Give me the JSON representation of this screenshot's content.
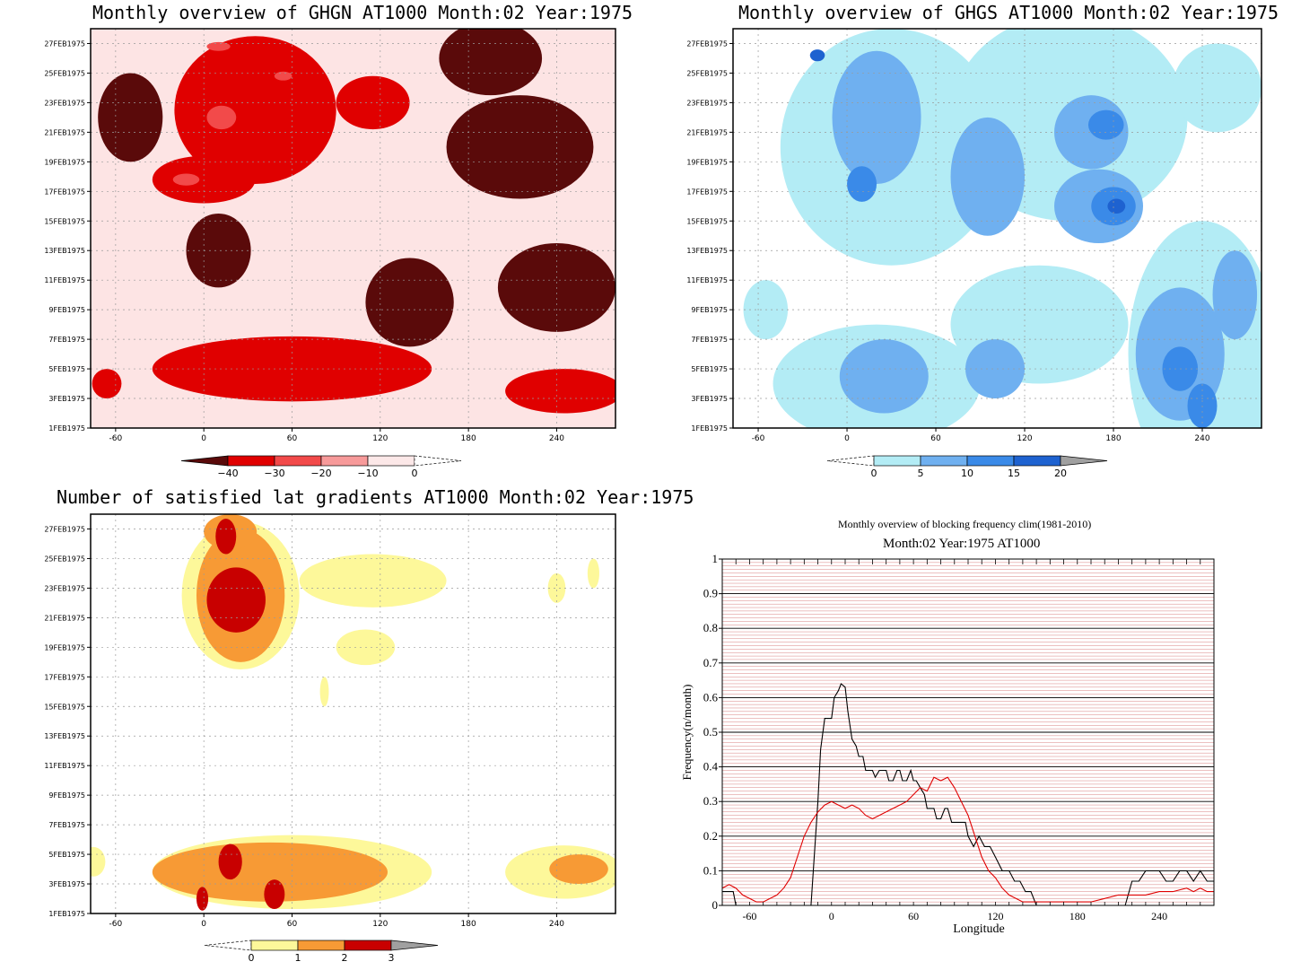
{
  "panels": {
    "ghgn": {
      "title": "Monthly overview of GHGN AT1000 Month:02 Year:1975"
    },
    "ghgs": {
      "title": "Monthly overview of GHGS AT1000 Month:02 Year:1975"
    },
    "lat": {
      "title": "Number of satisfied lat gradients AT1000 Month:02 Year:1975"
    },
    "blocking": {
      "title1": "Monthly overview of blocking frequency clim(1981-2010)",
      "title2": "Month:02 Year:1975  AT1000"
    }
  },
  "colorbars": {
    "ghgn": {
      "labels": [
        "-40",
        "-30",
        "-20",
        "-10",
        "0"
      ],
      "colors": [
        "#5a0a0a",
        "#e00000",
        "#f24a4a",
        "#f79a9a",
        "#fce8e8"
      ]
    },
    "ghgs": {
      "labels": [
        "0",
        "5",
        "10",
        "15",
        "20"
      ],
      "colors": [
        "#b3ecf5",
        "#6fb0f0",
        "#3a8ae8",
        "#1e62d0",
        "#a0a0a0"
      ]
    },
    "lat": {
      "labels": [
        "0",
        "1",
        "2",
        "3"
      ],
      "colors": [
        "#fdf89a",
        "#f79a35",
        "#c80000",
        "#a0a0a0"
      ]
    }
  },
  "chart_data": [
    {
      "type": "heatmap",
      "title": "Monthly overview of GHGN AT1000 Month:02 Year:1975",
      "xticks": [
        "-60",
        "0",
        "60",
        "120",
        "180",
        "240"
      ],
      "yticks": [
        "1FEB1975",
        "3FEB1975",
        "5FEB1975",
        "7FEB1975",
        "9FEB1975",
        "11FEB1975",
        "13FEB1975",
        "15FEB1975",
        "17FEB1975",
        "19FEB1975",
        "21FEB1975",
        "23FEB1975",
        "25FEB1975",
        "27FEB1975"
      ],
      "xlim": [
        -77,
        280
      ],
      "ylim": [
        1,
        28
      ],
      "levels": [
        -40,
        -30,
        -20,
        -10,
        0
      ],
      "colors": [
        "#5a0a0a",
        "#e00000",
        "#f24a4a",
        "#f79a9a",
        "#fde4e4"
      ],
      "background": "#fde4e4",
      "blobs": [
        {
          "x": [
            -77,
            280
          ],
          "y": [
            1,
            28
          ],
          "level": "none",
          "comment": "field"
        },
        {
          "cx": 140,
          "cy": 9.5,
          "rx": 30,
          "ry": 3,
          "level": 0
        },
        {
          "cx": 240,
          "cy": 10.5,
          "rx": 40,
          "ry": 3,
          "level": 0
        },
        {
          "cx": 10,
          "cy": 13,
          "rx": 22,
          "ry": 2.5,
          "level": 0
        },
        {
          "cx": 215,
          "cy": 20,
          "rx": 50,
          "ry": 3.5,
          "level": 0
        },
        {
          "cx": 195,
          "cy": 26,
          "rx": 35,
          "ry": 2.5,
          "level": 0
        },
        {
          "cx": -50,
          "cy": 22,
          "rx": 22,
          "ry": 3,
          "level": 0
        },
        {
          "cx": 35,
          "cy": 22.5,
          "rx": 55,
          "ry": 5,
          "level": 1
        },
        {
          "cx": 0,
          "cy": 17.8,
          "rx": 35,
          "ry": 1.6,
          "level": 1
        },
        {
          "cx": 115,
          "cy": 23,
          "rx": 25,
          "ry": 1.8,
          "level": 1
        },
        {
          "cx": 60,
          "cy": 5,
          "rx": 95,
          "ry": 2.2,
          "level": 1
        },
        {
          "cx": 245,
          "cy": 3.5,
          "rx": 40,
          "ry": 1.5,
          "level": 1
        },
        {
          "cx": -66,
          "cy": 4,
          "rx": 10,
          "ry": 1,
          "level": 1
        },
        {
          "cx": 12,
          "cy": 22,
          "rx": 10,
          "ry": 0.8,
          "level": 2
        },
        {
          "cx": -12,
          "cy": 17.8,
          "rx": 9,
          "ry": 0.4,
          "level": 2
        },
        {
          "cx": 10,
          "cy": 26.8,
          "rx": 8,
          "ry": 0.3,
          "level": 2
        },
        {
          "cx": 54,
          "cy": 24.8,
          "rx": 6,
          "ry": 0.3,
          "level": 2
        }
      ]
    },
    {
      "type": "heatmap",
      "title": "Monthly overview of GHGS AT1000 Month:02 Year:1975",
      "xticks": [
        "-60",
        "0",
        "60",
        "120",
        "180",
        "240"
      ],
      "yticks": [
        "1FEB1975",
        "3FEB1975",
        "5FEB1975",
        "7FEB1975",
        "9FEB1975",
        "11FEB1975",
        "13FEB1975",
        "15FEB1975",
        "17FEB1975",
        "19FEB1975",
        "21FEB1975",
        "23FEB1975",
        "25FEB1975",
        "27FEB1975"
      ],
      "xlim": [
        -77,
        280
      ],
      "ylim": [
        1,
        28
      ],
      "levels": [
        0,
        5,
        10,
        15,
        20
      ],
      "colors": [
        "#b3ecf5",
        "#6fb0f0",
        "#3a8ae8",
        "#1e62d0",
        "#a0a0a0"
      ],
      "background": "#ffffff",
      "blobs": [
        {
          "cx": 30,
          "cy": 20,
          "rx": 75,
          "ry": 8,
          "level": 0
        },
        {
          "cx": 150,
          "cy": 22,
          "rx": 80,
          "ry": 7,
          "level": 0
        },
        {
          "cx": 240,
          "cy": 6,
          "rx": 50,
          "ry": 9,
          "level": 0
        },
        {
          "cx": 20,
          "cy": 4,
          "rx": 70,
          "ry": 4,
          "level": 0
        },
        {
          "cx": 130,
          "cy": 8,
          "rx": 60,
          "ry": 4,
          "level": 0
        },
        {
          "cx": 250,
          "cy": 24,
          "rx": 30,
          "ry": 3,
          "level": 0
        },
        {
          "cx": -55,
          "cy": 9,
          "rx": 15,
          "ry": 2,
          "level": 0
        },
        {
          "cx": 20,
          "cy": 22,
          "rx": 30,
          "ry": 4.5,
          "level": 1
        },
        {
          "cx": 95,
          "cy": 18,
          "rx": 25,
          "ry": 4,
          "level": 1
        },
        {
          "cx": 165,
          "cy": 21,
          "rx": 25,
          "ry": 2.5,
          "level": 1
        },
        {
          "cx": 170,
          "cy": 16,
          "rx": 30,
          "ry": 2.5,
          "level": 1
        },
        {
          "cx": 25,
          "cy": 4.5,
          "rx": 30,
          "ry": 2.5,
          "level": 1
        },
        {
          "cx": 100,
          "cy": 5,
          "rx": 20,
          "ry": 2,
          "level": 1
        },
        {
          "cx": 225,
          "cy": 6,
          "rx": 30,
          "ry": 4.5,
          "level": 1
        },
        {
          "cx": 262,
          "cy": 10,
          "rx": 15,
          "ry": 3,
          "level": 1
        },
        {
          "cx": 10,
          "cy": 17.5,
          "rx": 10,
          "ry": 1.2,
          "level": 2
        },
        {
          "cx": 175,
          "cy": 21.5,
          "rx": 12,
          "ry": 1,
          "level": 2
        },
        {
          "cx": 180,
          "cy": 16,
          "rx": 15,
          "ry": 1.3,
          "level": 2
        },
        {
          "cx": 225,
          "cy": 5,
          "rx": 12,
          "ry": 1.5,
          "level": 2
        },
        {
          "cx": 240,
          "cy": 2.5,
          "rx": 10,
          "ry": 1.5,
          "level": 2
        },
        {
          "cx": -20,
          "cy": 26.2,
          "rx": 5,
          "ry": 0.4,
          "level": 3
        },
        {
          "cx": 182,
          "cy": 16,
          "rx": 6,
          "ry": 0.5,
          "level": 3
        }
      ]
    },
    {
      "type": "heatmap",
      "title": "Number of satisfied lat gradients AT1000 Month:02 Year:1975",
      "xticks": [
        "-60",
        "0",
        "60",
        "120",
        "180",
        "240"
      ],
      "yticks": [
        "1FEB1975",
        "3FEB1975",
        "5FEB1975",
        "7FEB1975",
        "9FEB1975",
        "11FEB1975",
        "13FEB1975",
        "15FEB1975",
        "17FEB1975",
        "19FEB1975",
        "21FEB1975",
        "23FEB1975",
        "25FEB1975",
        "27FEB1975"
      ],
      "xlim": [
        -77,
        280
      ],
      "ylim": [
        1,
        28
      ],
      "levels": [
        0,
        1,
        2,
        3
      ],
      "colors": [
        "#fdf89a",
        "#f79a35",
        "#c80000",
        "#a0a0a0"
      ],
      "background": "#ffffff",
      "blobs": [
        {
          "cx": 25,
          "cy": 22.5,
          "rx": 40,
          "ry": 5,
          "level": 0
        },
        {
          "cx": 115,
          "cy": 23.5,
          "rx": 50,
          "ry": 1.8,
          "level": 0
        },
        {
          "cx": 110,
          "cy": 19,
          "rx": 20,
          "ry": 1.2,
          "level": 0
        },
        {
          "cx": 60,
          "cy": 3.8,
          "rx": 95,
          "ry": 2.5,
          "level": 0
        },
        {
          "cx": 245,
          "cy": 3.8,
          "rx": 40,
          "ry": 1.8,
          "level": 0
        },
        {
          "cx": -75,
          "cy": 4.5,
          "rx": 8,
          "ry": 1,
          "level": 0
        },
        {
          "cx": 240,
          "cy": 23,
          "rx": 6,
          "ry": 1,
          "level": 0
        },
        {
          "cx": 265,
          "cy": 24,
          "rx": 4,
          "ry": 1,
          "level": 0
        },
        {
          "cx": 82,
          "cy": 16,
          "rx": 3,
          "ry": 1,
          "level": 0
        },
        {
          "cx": 25,
          "cy": 22.5,
          "rx": 30,
          "ry": 4.5,
          "level": 1
        },
        {
          "cx": 18,
          "cy": 26.8,
          "rx": 18,
          "ry": 1.2,
          "level": 1
        },
        {
          "cx": 45,
          "cy": 3.8,
          "rx": 80,
          "ry": 2,
          "level": 1
        },
        {
          "cx": 255,
          "cy": 4,
          "rx": 20,
          "ry": 1,
          "level": 1
        },
        {
          "cx": 22,
          "cy": 22.2,
          "rx": 20,
          "ry": 2.2,
          "level": 2
        },
        {
          "cx": 15,
          "cy": 26.5,
          "rx": 7,
          "ry": 1.2,
          "level": 2
        },
        {
          "cx": 18,
          "cy": 4.5,
          "rx": 8,
          "ry": 1.2,
          "level": 2
        },
        {
          "cx": 48,
          "cy": 2.3,
          "rx": 7,
          "ry": 1,
          "level": 2
        },
        {
          "cx": -1,
          "cy": 2,
          "rx": 4,
          "ry": 0.8,
          "level": 2
        }
      ]
    },
    {
      "type": "line",
      "title": "Monthly overview of blocking frequency clim(1981-2010)",
      "subtitle": "Month:02 Year:1975  AT1000",
      "xlabel": "Longitude",
      "ylabel": "Frequency(n/month)",
      "xlim": [
        -80,
        280
      ],
      "ylim": [
        0,
        1
      ],
      "xticks": [
        "-60",
        "0",
        "60",
        "120",
        "180",
        "240"
      ],
      "yticks": [
        "0",
        "0.1",
        "0.2",
        "0.3",
        "0.4",
        "0.5",
        "0.6",
        "0.7",
        "0.8",
        "0.9",
        "1"
      ],
      "grid": true,
      "series": [
        {
          "color": "#000000",
          "x": [
            -80,
            -72,
            -70,
            -15,
            -10,
            -8,
            -5,
            -2,
            0,
            2,
            5,
            7,
            10,
            12,
            15,
            18,
            20,
            23,
            25,
            30,
            32,
            35,
            40,
            42,
            45,
            48,
            50,
            52,
            55,
            58,
            60,
            62,
            65,
            68,
            70,
            75,
            77,
            80,
            83,
            85,
            88,
            92,
            95,
            98,
            100,
            104,
            108,
            112,
            116,
            120,
            125,
            130,
            134,
            138,
            142,
            146,
            150,
            160,
            180,
            200,
            215,
            220,
            225,
            230,
            240,
            245,
            250,
            255,
            260,
            265,
            270,
            275,
            280
          ],
          "y": [
            0.04,
            0.04,
            0,
            0,
            0.3,
            0.45,
            0.54,
            0.54,
            0.54,
            0.6,
            0.62,
            0.64,
            0.63,
            0.56,
            0.48,
            0.46,
            0.43,
            0.43,
            0.39,
            0.39,
            0.37,
            0.39,
            0.39,
            0.36,
            0.36,
            0.39,
            0.39,
            0.36,
            0.36,
            0.39,
            0.36,
            0.36,
            0.34,
            0.32,
            0.28,
            0.28,
            0.25,
            0.25,
            0.28,
            0.28,
            0.24,
            0.24,
            0.24,
            0.24,
            0.2,
            0.17,
            0.2,
            0.17,
            0.17,
            0.14,
            0.1,
            0.1,
            0.07,
            0.07,
            0.04,
            0.04,
            0,
            0,
            0,
            0,
            0,
            0.07,
            0.07,
            0.1,
            0.1,
            0.07,
            0.07,
            0.1,
            0.1,
            0.07,
            0.1,
            0.07,
            0.07
          ]
        },
        {
          "color": "#e00000",
          "x": [
            -80,
            -75,
            -70,
            -65,
            -60,
            -55,
            -50,
            -45,
            -40,
            -35,
            -30,
            -25,
            -20,
            -15,
            -10,
            -5,
            0,
            5,
            10,
            15,
            20,
            25,
            30,
            35,
            40,
            45,
            50,
            55,
            60,
            65,
            70,
            75,
            80,
            85,
            90,
            95,
            100,
            105,
            110,
            115,
            120,
            125,
            130,
            135,
            140,
            145,
            150,
            160,
            170,
            180,
            190,
            200,
            210,
            220,
            230,
            240,
            250,
            260,
            265,
            270,
            275,
            280
          ],
          "y": [
            0.05,
            0.06,
            0.05,
            0.03,
            0.02,
            0.01,
            0.01,
            0.02,
            0.03,
            0.05,
            0.08,
            0.14,
            0.2,
            0.24,
            0.27,
            0.29,
            0.3,
            0.29,
            0.28,
            0.29,
            0.28,
            0.26,
            0.25,
            0.26,
            0.27,
            0.28,
            0.29,
            0.3,
            0.32,
            0.34,
            0.33,
            0.37,
            0.36,
            0.37,
            0.34,
            0.3,
            0.26,
            0.2,
            0.14,
            0.1,
            0.08,
            0.05,
            0.03,
            0.02,
            0.01,
            0.01,
            0.01,
            0.01,
            0.01,
            0.01,
            0.01,
            0.02,
            0.03,
            0.03,
            0.03,
            0.04,
            0.04,
            0.05,
            0.04,
            0.05,
            0.04,
            0.04
          ]
        }
      ]
    }
  ]
}
